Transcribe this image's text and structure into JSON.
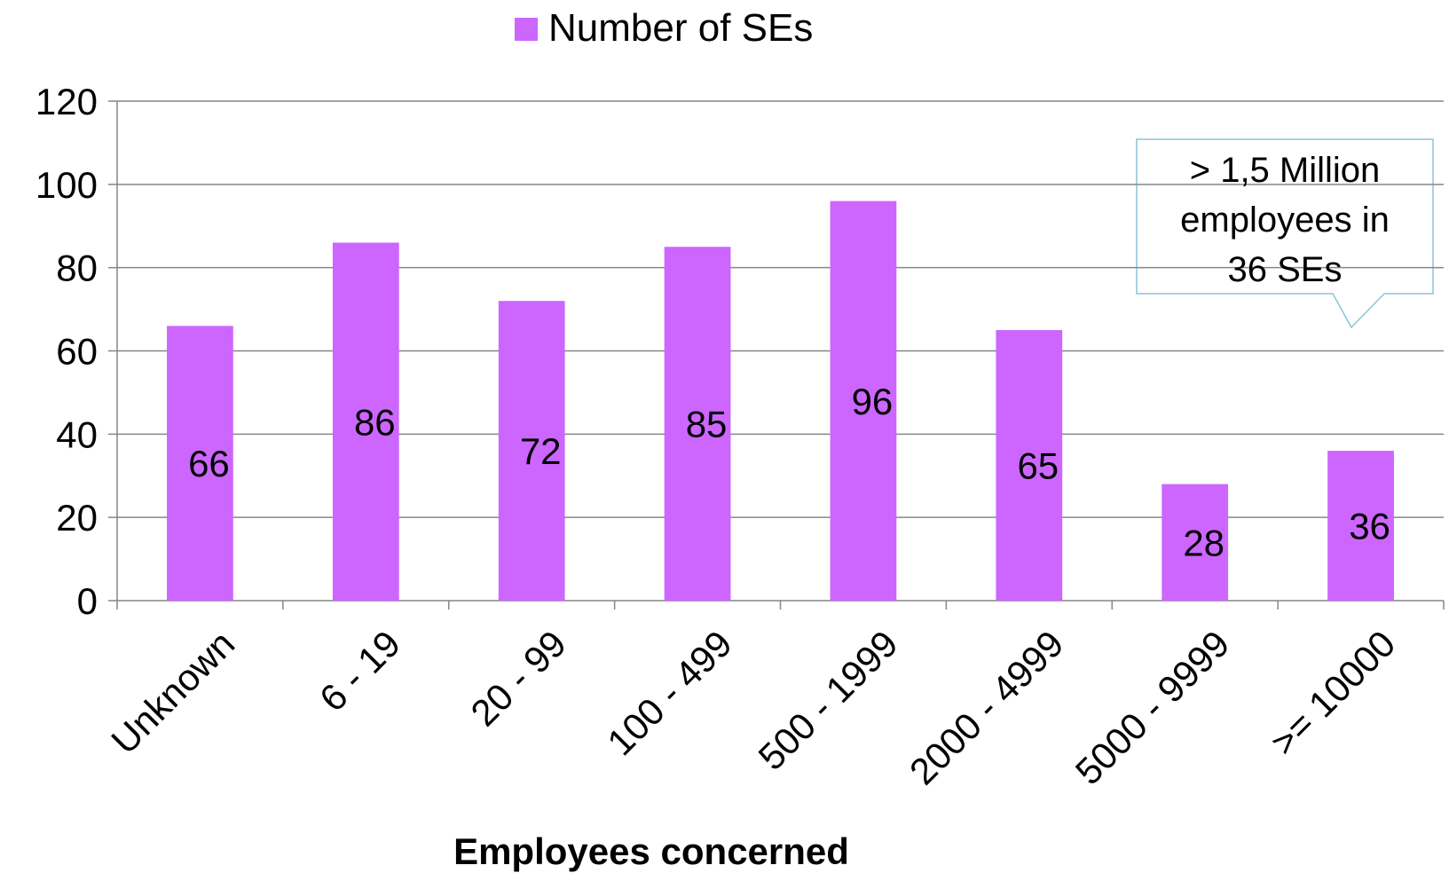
{
  "chart_data": {
    "type": "bar",
    "legend": "Number of SEs",
    "x_label": "Employees concerned",
    "categories": [
      "Unknown",
      "6 - 19",
      "20 - 99",
      "100 - 499",
      "500 - 1999",
      "2000 - 4999",
      "5000 - 9999",
      ">= 10000"
    ],
    "values": [
      66,
      86,
      72,
      85,
      96,
      65,
      28,
      36
    ],
    "color": "#cc66ff",
    "ylim": [
      0,
      120
    ],
    "yticks": [
      0,
      20,
      40,
      60,
      80,
      100,
      120
    ],
    "grid": true,
    "annotation": [
      "> 1,5 Million",
      "employees in",
      "36 SEs"
    ]
  }
}
